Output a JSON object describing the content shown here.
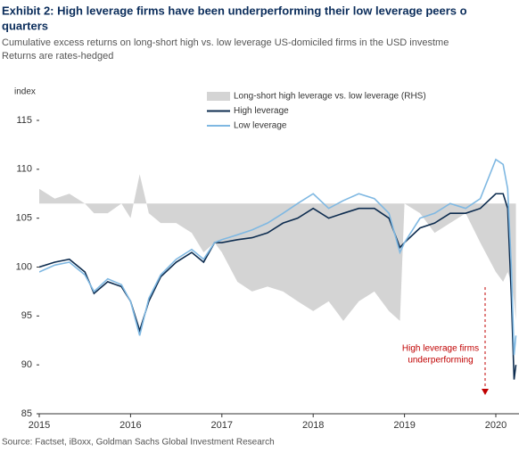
{
  "chart_data": {
    "type": "line",
    "title": "Exhibit 2: High leverage firms have been underperforming their low leverage peers o",
    "title_line2": "quarters",
    "subtitle": "Cumulative excess returns on long-short high vs. low leverage US-domiciled firms in the USD investme",
    "subtitle_line2": "Returns are rates-hedged",
    "y_label": "index",
    "annotation": [
      "High leverage firms",
      "underperforming"
    ],
    "source": "Source: Factset, iBoxx, Goldman Sachs Global Investment Research",
    "x": [
      2015.0,
      2015.17,
      2015.33,
      2015.5,
      2015.6,
      2015.75,
      2015.9,
      2016.0,
      2016.1,
      2016.2,
      2016.33,
      2016.5,
      2016.67,
      2016.8,
      2016.92,
      2017.0,
      2017.17,
      2017.33,
      2017.5,
      2017.67,
      2017.83,
      2018.0,
      2018.17,
      2018.33,
      2018.5,
      2018.67,
      2018.83,
      2018.95,
      2019.0,
      2019.17,
      2019.33,
      2019.5,
      2019.67,
      2019.83,
      2020.0,
      2020.08,
      2020.13,
      2020.17,
      2020.2,
      2020.22
    ],
    "series": [
      {
        "name": "Long-short high leverage vs. low leverage (RHS)",
        "kind": "area",
        "axis": "y2",
        "color": "#d4d4d4",
        "values": [
          1.5,
          0.5,
          1,
          0,
          -1,
          -1,
          0,
          -1.5,
          3,
          -1,
          -2,
          -2,
          -3,
          -5,
          -4,
          -5,
          -8,
          -9,
          -8.5,
          -9,
          -10,
          -11,
          -10,
          -12,
          -10,
          -9,
          -11,
          -12,
          0,
          -1,
          -3,
          -2,
          -1,
          -4,
          -7,
          -8,
          -7,
          -8,
          -10,
          -12
        ]
      },
      {
        "name": "High leverage",
        "kind": "line",
        "color": "#0d2c4f",
        "values": [
          100,
          100.5,
          100.8,
          99.5,
          97.3,
          98.5,
          98,
          96.5,
          93.5,
          96.5,
          99,
          100.5,
          101.5,
          100.5,
          102.5,
          102.5,
          102.8,
          103,
          103.5,
          104.5,
          105,
          106,
          105,
          105.5,
          106,
          106,
          105,
          102,
          102.5,
          104,
          104.5,
          105.5,
          105.5,
          106,
          107.5,
          107.5,
          106,
          97,
          88.5,
          90
        ]
      },
      {
        "name": "Low leverage",
        "kind": "line",
        "color": "#7fb8e2",
        "values": [
          99.5,
          100.2,
          100.5,
          99.2,
          97.5,
          98.8,
          98.2,
          96.5,
          93,
          96.8,
          99.2,
          100.8,
          101.8,
          100.8,
          102.5,
          102.8,
          103.3,
          103.8,
          104.5,
          105.5,
          106.5,
          107.5,
          106,
          106.8,
          107.5,
          107,
          105.5,
          101.5,
          102.5,
          105,
          105.5,
          106.5,
          106,
          107,
          111,
          110.5,
          108,
          100,
          91,
          93
        ]
      }
    ],
    "xlim": [
      2015,
      2020.25
    ],
    "xticks": [
      2015,
      2016,
      2017,
      2018,
      2019,
      2020
    ],
    "ylim": [
      85,
      115
    ],
    "yticks": [
      85,
      90,
      95,
      100,
      105,
      110,
      115
    ],
    "y2lim": [
      -21.5,
      8.5
    ],
    "legend": "top-center"
  }
}
